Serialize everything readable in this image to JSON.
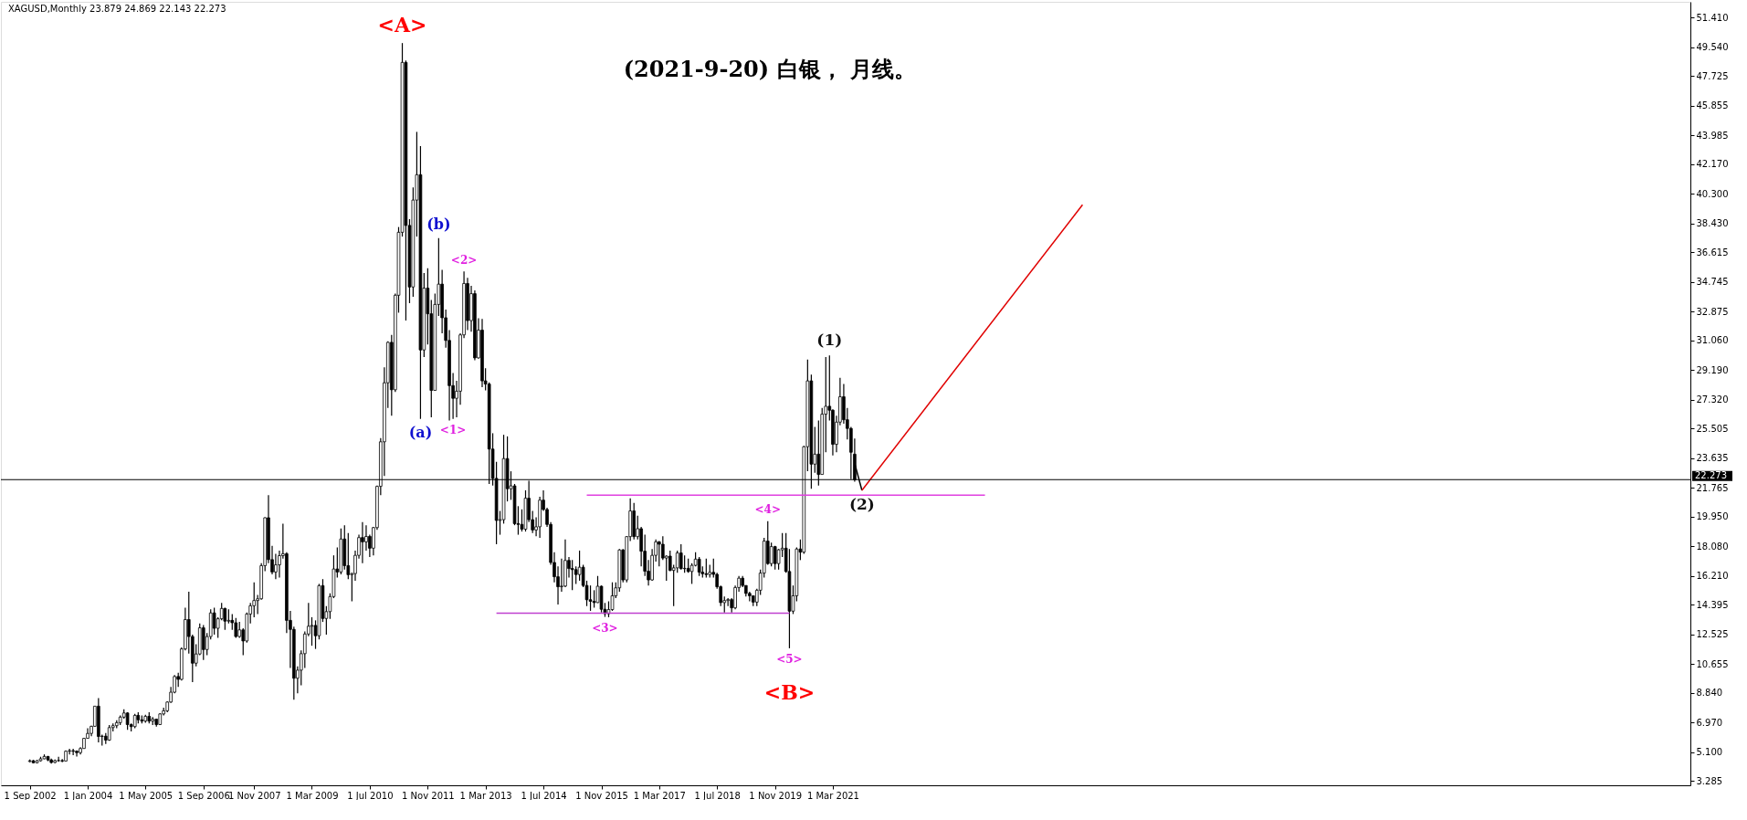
{
  "chart_data": {
    "type": "candlestick",
    "title": "(2021-9-20)  白银，  月线。",
    "subtitle": "XAGUSD,Monthly  23.879 24.869 22.143 22.273",
    "x": [
      "2002-09",
      "2002-10",
      "2002-11",
      "2002-12",
      "2003-01",
      "2003-02",
      "2003-03",
      "2003-04",
      "2003-05",
      "2003-06",
      "2003-07",
      "2003-08",
      "2003-09",
      "2003-10",
      "2003-11",
      "2003-12",
      "2004-01",
      "2004-02",
      "2004-03",
      "2004-04",
      "2004-05",
      "2004-06",
      "2004-07",
      "2004-08",
      "2004-09",
      "2004-10",
      "2004-11",
      "2004-12",
      "2005-01",
      "2005-02",
      "2005-03",
      "2005-04",
      "2005-05",
      "2005-06",
      "2005-07",
      "2005-08",
      "2005-09",
      "2005-10",
      "2005-11",
      "2005-12",
      "2006-01",
      "2006-02",
      "2006-03",
      "2006-04",
      "2006-05",
      "2006-06",
      "2006-07",
      "2006-08",
      "2006-09",
      "2006-10",
      "2006-11",
      "2006-12",
      "2007-01",
      "2007-02",
      "2007-03",
      "2007-04",
      "2007-05",
      "2007-06",
      "2007-07",
      "2007-08",
      "2007-09",
      "2007-10",
      "2007-11",
      "2007-12",
      "2008-01",
      "2008-02",
      "2008-03",
      "2008-04",
      "2008-05",
      "2008-06",
      "2008-07",
      "2008-08",
      "2008-09",
      "2008-10",
      "2008-11",
      "2008-12",
      "2009-01",
      "2009-02",
      "2009-03",
      "2009-04",
      "2009-05",
      "2009-06",
      "2009-07",
      "2009-08",
      "2009-09",
      "2009-10",
      "2009-11",
      "2009-12",
      "2010-01",
      "2010-02",
      "2010-03",
      "2010-04",
      "2010-05",
      "2010-06",
      "2010-07",
      "2010-08",
      "2010-09",
      "2010-10",
      "2010-11",
      "2010-12",
      "2011-01",
      "2011-02",
      "2011-03",
      "2011-04",
      "2011-05",
      "2011-06",
      "2011-07",
      "2011-08",
      "2011-09",
      "2011-10",
      "2011-11",
      "2011-12",
      "2012-01",
      "2012-02",
      "2012-03",
      "2012-04",
      "2012-05",
      "2012-06",
      "2012-07",
      "2012-08",
      "2012-09",
      "2012-10",
      "2012-11",
      "2012-12",
      "2013-01",
      "2013-02",
      "2013-03",
      "2013-04",
      "2013-05",
      "2013-06",
      "2013-07",
      "2013-08",
      "2013-09",
      "2013-10",
      "2013-11",
      "2013-12",
      "2014-01",
      "2014-02",
      "2014-03",
      "2014-04",
      "2014-05",
      "2014-06",
      "2014-07",
      "2014-08",
      "2014-09",
      "2014-10",
      "2014-11",
      "2014-12",
      "2015-01",
      "2015-02",
      "2015-03",
      "2015-04",
      "2015-05",
      "2015-06",
      "2015-07",
      "2015-08",
      "2015-09",
      "2015-10",
      "2015-11",
      "2015-12",
      "2016-01",
      "2016-02",
      "2016-03",
      "2016-04",
      "2016-05",
      "2016-06",
      "2016-07",
      "2016-08",
      "2016-09",
      "2016-10",
      "2016-11",
      "2016-12",
      "2017-01",
      "2017-02",
      "2017-03",
      "2017-04",
      "2017-05",
      "2017-06",
      "2017-07",
      "2017-08",
      "2017-09",
      "2017-10",
      "2017-11",
      "2017-12",
      "2018-01",
      "2018-02",
      "2018-03",
      "2018-04",
      "2018-05",
      "2018-06",
      "2018-07",
      "2018-08",
      "2018-09",
      "2018-10",
      "2018-11",
      "2018-12",
      "2019-01",
      "2019-02",
      "2019-03",
      "2019-04",
      "2019-05",
      "2019-06",
      "2019-07",
      "2019-08",
      "2019-09",
      "2019-10",
      "2019-11",
      "2019-12",
      "2020-01",
      "2020-02",
      "2020-03",
      "2020-04",
      "2020-05",
      "2020-06",
      "2020-07",
      "2020-08",
      "2020-09",
      "2020-10",
      "2020-11",
      "2020-12",
      "2021-01",
      "2021-02",
      "2021-03",
      "2021-04",
      "2021-05",
      "2021-06",
      "2021-07",
      "2021-08",
      "2021-09"
    ],
    "ohlc": [
      [
        4.5,
        4.62,
        4.45,
        4.55
      ],
      [
        4.55,
        4.6,
        4.38,
        4.42
      ],
      [
        4.42,
        4.6,
        4.38,
        4.55
      ],
      [
        4.55,
        4.8,
        4.5,
        4.67
      ],
      [
        4.67,
        4.95,
        4.65,
        4.82
      ],
      [
        4.82,
        4.85,
        4.52,
        4.6
      ],
      [
        4.6,
        4.68,
        4.37,
        4.44
      ],
      [
        4.44,
        4.62,
        4.4,
        4.56
      ],
      [
        4.56,
        4.8,
        4.48,
        4.56
      ],
      [
        4.56,
        4.65,
        4.45,
        4.53
      ],
      [
        4.53,
        5.2,
        4.52,
        5.15
      ],
      [
        5.15,
        5.3,
        4.95,
        5.18
      ],
      [
        5.18,
        5.3,
        4.9,
        5.15
      ],
      [
        5.15,
        5.2,
        4.82,
        5.06
      ],
      [
        5.06,
        5.4,
        4.95,
        5.32
      ],
      [
        5.32,
        6.0,
        5.3,
        5.96
      ],
      [
        5.96,
        6.6,
        5.95,
        6.27
      ],
      [
        6.27,
        6.75,
        6.1,
        6.72
      ],
      [
        6.72,
        8.0,
        6.7,
        7.99
      ],
      [
        7.99,
        8.5,
        5.7,
        6.08
      ],
      [
        6.08,
        6.2,
        5.5,
        6.1
      ],
      [
        6.1,
        6.3,
        5.6,
        5.85
      ],
      [
        5.85,
        6.8,
        5.8,
        6.64
      ],
      [
        6.64,
        6.9,
        6.4,
        6.76
      ],
      [
        6.76,
        7.1,
        6.6,
        6.95
      ],
      [
        6.95,
        7.4,
        6.8,
        7.3
      ],
      [
        7.3,
        7.8,
        7.2,
        7.56
      ],
      [
        7.56,
        7.6,
        6.5,
        6.83
      ],
      [
        6.83,
        6.9,
        6.4,
        6.7
      ],
      [
        6.7,
        7.5,
        6.6,
        7.41
      ],
      [
        7.41,
        7.6,
        6.9,
        7.13
      ],
      [
        7.13,
        7.4,
        6.9,
        7.05
      ],
      [
        7.05,
        7.45,
        6.95,
        7.35
      ],
      [
        7.35,
        7.6,
        6.9,
        7.05
      ],
      [
        7.05,
        7.3,
        6.8,
        7.17
      ],
      [
        7.17,
        7.2,
        6.7,
        6.83
      ],
      [
        6.83,
        7.55,
        6.8,
        7.5
      ],
      [
        7.5,
        7.9,
        7.4,
        7.7
      ],
      [
        7.7,
        8.3,
        7.6,
        8.25
      ],
      [
        8.25,
        9.2,
        8.2,
        8.87
      ],
      [
        8.87,
        9.95,
        8.8,
        9.86
      ],
      [
        9.86,
        10.1,
        9.2,
        9.68
      ],
      [
        9.68,
        11.7,
        9.6,
        11.6
      ],
      [
        11.6,
        14.2,
        11.5,
        13.45
      ],
      [
        13.45,
        15.2,
        11.3,
        12.38
      ],
      [
        12.38,
        12.5,
        9.5,
        10.7
      ],
      [
        10.7,
        11.9,
        10.5,
        11.28
      ],
      [
        11.28,
        13.2,
        11.2,
        12.93
      ],
      [
        12.93,
        13.1,
        10.9,
        11.56
      ],
      [
        11.56,
        12.6,
        11.2,
        12.38
      ],
      [
        12.38,
        14.1,
        12.2,
        13.87
      ],
      [
        13.87,
        14.2,
        12.5,
        12.9
      ],
      [
        12.9,
        13.6,
        12.3,
        13.5
      ],
      [
        13.5,
        14.5,
        13.4,
        14.15
      ],
      [
        14.15,
        14.2,
        12.8,
        13.35
      ],
      [
        13.35,
        14.1,
        13.2,
        13.4
      ],
      [
        13.4,
        13.8,
        12.8,
        13.25
      ],
      [
        13.25,
        13.55,
        12.3,
        12.38
      ],
      [
        12.38,
        13.3,
        12.3,
        12.8
      ],
      [
        12.8,
        12.9,
        11.2,
        12.1
      ],
      [
        12.1,
        13.9,
        12.0,
        13.8
      ],
      [
        13.8,
        14.5,
        13.2,
        14.32
      ],
      [
        14.32,
        15.8,
        13.6,
        14.65
      ],
      [
        14.65,
        15.0,
        13.8,
        14.76
      ],
      [
        14.76,
        17.0,
        14.7,
        16.85
      ],
      [
        16.85,
        19.9,
        16.5,
        19.87
      ],
      [
        19.87,
        21.3,
        17.0,
        17.23
      ],
      [
        17.23,
        18.1,
        16.3,
        16.45
      ],
      [
        16.45,
        17.6,
        16.0,
        16.9
      ],
      [
        16.9,
        17.8,
        16.1,
        17.48
      ],
      [
        17.48,
        19.5,
        17.3,
        17.6
      ],
      [
        17.6,
        17.7,
        12.6,
        13.4
      ],
      [
        13.4,
        14.0,
        10.4,
        12.83
      ],
      [
        12.83,
        13.0,
        8.4,
        9.75
      ],
      [
        9.75,
        10.5,
        8.8,
        10.26
      ],
      [
        10.26,
        11.5,
        9.3,
        11.3
      ],
      [
        11.3,
        12.7,
        10.4,
        12.54
      ],
      [
        12.54,
        14.5,
        12.4,
        13.03
      ],
      [
        13.03,
        13.6,
        11.8,
        13.08
      ],
      [
        13.08,
        13.4,
        11.6,
        12.43
      ],
      [
        12.43,
        15.7,
        12.2,
        15.59
      ],
      [
        15.59,
        16.0,
        13.3,
        13.52
      ],
      [
        13.52,
        14.3,
        12.5,
        13.95
      ],
      [
        13.95,
        15.1,
        13.5,
        14.9
      ],
      [
        14.9,
        17.5,
        14.8,
        16.64
      ],
      [
        16.64,
        18.0,
        16.1,
        16.45
      ],
      [
        16.45,
        19.2,
        16.3,
        18.53
      ],
      [
        18.53,
        19.4,
        16.6,
        16.85
      ],
      [
        16.85,
        18.9,
        16.0,
        16.28
      ],
      [
        16.28,
        16.4,
        14.6,
        16.35
      ],
      [
        16.35,
        17.8,
        15.9,
        17.5
      ],
      [
        17.5,
        18.8,
        17.3,
        18.62
      ],
      [
        18.62,
        19.6,
        17.0,
        18.35
      ],
      [
        18.35,
        19.4,
        17.8,
        18.69
      ],
      [
        18.69,
        18.8,
        17.4,
        17.95
      ],
      [
        17.95,
        19.3,
        17.5,
        19.25
      ],
      [
        19.25,
        21.9,
        19.1,
        21.85
      ],
      [
        21.85,
        24.9,
        21.3,
        24.66
      ],
      [
        24.66,
        29.35,
        22.5,
        28.38
      ],
      [
        28.38,
        31.0,
        26.8,
        30.93
      ],
      [
        30.93,
        31.4,
        26.3,
        27.94
      ],
      [
        27.94,
        34.0,
        27.8,
        33.9
      ],
      [
        33.9,
        38.2,
        32.8,
        37.87
      ],
      [
        37.87,
        49.8,
        37.6,
        48.58
      ],
      [
        48.58,
        48.7,
        32.3,
        38.3
      ],
      [
        38.3,
        38.7,
        33.4,
        34.42
      ],
      [
        34.42,
        40.7,
        33.8,
        39.9
      ],
      [
        39.9,
        44.2,
        37.6,
        41.5
      ],
      [
        41.5,
        43.3,
        26.1,
        30.45
      ],
      [
        30.45,
        35.3,
        30.0,
        34.35
      ],
      [
        34.35,
        35.6,
        30.8,
        32.73
      ],
      [
        32.73,
        33.6,
        26.2,
        27.9
      ],
      [
        27.9,
        34.0,
        27.9,
        33.32
      ],
      [
        33.32,
        37.5,
        32.6,
        34.6
      ],
      [
        34.6,
        35.5,
        31.5,
        32.48
      ],
      [
        32.48,
        33.0,
        30.6,
        31.05
      ],
      [
        31.05,
        31.7,
        26.0,
        28.2
      ],
      [
        28.2,
        29.0,
        26.1,
        27.4
      ],
      [
        27.4,
        28.5,
        26.2,
        27.85
      ],
      [
        27.85,
        31.5,
        27.0,
        31.4
      ],
      [
        31.4,
        35.4,
        31.2,
        34.64
      ],
      [
        34.64,
        35.0,
        31.7,
        32.3
      ],
      [
        32.3,
        34.5,
        31.6,
        34.0
      ],
      [
        34.0,
        34.2,
        29.8,
        29.95
      ],
      [
        29.95,
        32.45,
        29.9,
        31.7
      ],
      [
        31.7,
        32.4,
        28.1,
        28.5
      ],
      [
        28.5,
        29.3,
        27.9,
        28.3
      ],
      [
        28.3,
        28.4,
        22.0,
        24.2
      ],
      [
        24.2,
        25.2,
        21.9,
        22.35
      ],
      [
        22.35,
        23.4,
        18.2,
        19.7
      ],
      [
        19.7,
        20.3,
        18.8,
        19.75
      ],
      [
        19.75,
        25.1,
        19.5,
        23.6
      ],
      [
        23.6,
        25.0,
        20.9,
        21.7
      ],
      [
        21.7,
        22.8,
        21.0,
        21.88
      ],
      [
        21.88,
        22.0,
        19.4,
        19.5
      ],
      [
        19.5,
        20.6,
        18.8,
        19.45
      ],
      [
        19.45,
        20.4,
        19.0,
        19.15
      ],
      [
        19.15,
        21.6,
        19.0,
        21.1
      ],
      [
        21.1,
        22.2,
        19.6,
        19.75
      ],
      [
        19.75,
        20.3,
        18.9,
        19.1
      ],
      [
        19.1,
        19.9,
        18.7,
        19.3
      ],
      [
        19.3,
        21.2,
        18.6,
        20.98
      ],
      [
        20.98,
        21.6,
        20.3,
        20.39
      ],
      [
        20.39,
        20.5,
        19.3,
        19.45
      ],
      [
        19.45,
        19.6,
        16.9,
        17.05
      ],
      [
        17.05,
        17.7,
        15.8,
        16.15
      ],
      [
        16.15,
        16.8,
        14.4,
        15.52
      ],
      [
        15.52,
        17.3,
        15.2,
        15.56
      ],
      [
        15.56,
        18.5,
        15.5,
        17.18
      ],
      [
        17.18,
        17.4,
        16.1,
        16.67
      ],
      [
        16.67,
        17.2,
        15.3,
        16.6
      ],
      [
        16.6,
        16.8,
        15.7,
        16.29
      ],
      [
        16.29,
        17.8,
        15.9,
        16.75
      ],
      [
        16.75,
        16.9,
        15.5,
        15.6
      ],
      [
        15.6,
        15.9,
        14.3,
        14.7
      ],
      [
        14.7,
        15.6,
        14.0,
        14.6
      ],
      [
        14.6,
        15.3,
        14.2,
        14.52
      ],
      [
        14.52,
        16.2,
        14.5,
        15.55
      ],
      [
        15.55,
        15.6,
        13.9,
        14.1
      ],
      [
        14.1,
        14.5,
        13.62,
        13.82
      ],
      [
        13.82,
        14.6,
        13.6,
        14.08
      ],
      [
        14.08,
        15.8,
        14.0,
        14.95
      ],
      [
        14.95,
        15.8,
        14.8,
        15.45
      ],
      [
        15.45,
        17.9,
        15.2,
        17.84
      ],
      [
        17.84,
        17.9,
        15.8,
        15.95
      ],
      [
        15.95,
        18.7,
        15.8,
        18.68
      ],
      [
        18.68,
        21.1,
        18.4,
        20.3
      ],
      [
        20.3,
        20.8,
        18.5,
        18.68
      ],
      [
        18.68,
        20.0,
        18.5,
        19.18
      ],
      [
        19.18,
        19.3,
        16.8,
        17.76
      ],
      [
        17.76,
        18.8,
        16.2,
        16.5
      ],
      [
        16.5,
        17.2,
        15.6,
        15.95
      ],
      [
        15.95,
        17.9,
        15.9,
        17.5
      ],
      [
        17.5,
        18.5,
        17.1,
        18.35
      ],
      [
        18.35,
        18.4,
        16.8,
        18.2
      ],
      [
        18.2,
        18.7,
        17.2,
        17.33
      ],
      [
        17.33,
        17.5,
        15.9,
        17.45
      ],
      [
        17.45,
        17.8,
        16.5,
        16.55
      ],
      [
        16.55,
        16.9,
        14.3,
        16.71
      ],
      [
        16.71,
        17.8,
        16.4,
        17.65
      ],
      [
        17.65,
        18.2,
        16.6,
        16.66
      ],
      [
        16.66,
        17.5,
        16.4,
        16.68
      ],
      [
        16.68,
        17.3,
        16.4,
        16.48
      ],
      [
        16.48,
        17.0,
        15.7,
        16.87
      ],
      [
        16.87,
        17.7,
        16.8,
        17.26
      ],
      [
        17.26,
        17.4,
        16.2,
        16.44
      ],
      [
        16.44,
        16.8,
        16.1,
        16.34
      ],
      [
        16.34,
        17.3,
        16.1,
        16.29
      ],
      [
        16.29,
        16.9,
        16.1,
        16.43
      ],
      [
        16.43,
        17.3,
        16.1,
        16.3
      ],
      [
        16.3,
        16.4,
        15.4,
        15.52
      ],
      [
        15.52,
        15.6,
        14.3,
        14.52
      ],
      [
        14.52,
        14.9,
        13.9,
        14.65
      ],
      [
        14.65,
        14.8,
        14.3,
        14.71
      ],
      [
        14.71,
        14.8,
        13.9,
        14.19
      ],
      [
        14.19,
        15.6,
        14.1,
        15.47
      ],
      [
        15.47,
        16.2,
        15.2,
        16.06
      ],
      [
        16.06,
        16.2,
        15.5,
        15.6
      ],
      [
        15.6,
        15.6,
        14.9,
        15.1
      ],
      [
        15.1,
        15.2,
        14.6,
        14.95
      ],
      [
        14.95,
        14.95,
        14.3,
        14.55
      ],
      [
        14.55,
        15.4,
        14.3,
        15.3
      ],
      [
        15.3,
        16.6,
        15.0,
        16.38
      ],
      [
        16.38,
        18.6,
        16.1,
        18.4
      ],
      [
        18.4,
        19.65,
        16.9,
        16.98
      ],
      [
        16.98,
        18.3,
        16.8,
        18.05
      ],
      [
        18.05,
        18.1,
        16.6,
        16.98
      ],
      [
        16.98,
        17.9,
        16.6,
        17.85
      ],
      [
        17.85,
        18.9,
        17.4,
        17.95
      ],
      [
        17.95,
        18.9,
        16.4,
        16.48
      ],
      [
        16.48,
        17.9,
        11.64,
        13.98
      ],
      [
        13.98,
        15.6,
        13.8,
        14.95
      ],
      [
        14.95,
        18.0,
        14.6,
        17.9
      ],
      [
        17.9,
        18.5,
        17.2,
        17.7
      ],
      [
        17.7,
        24.4,
        17.6,
        24.35
      ],
      [
        24.35,
        29.85,
        22.8,
        28.5
      ],
      [
        28.5,
        28.9,
        21.7,
        23.25
      ],
      [
        23.25,
        25.6,
        22.7,
        23.88
      ],
      [
        23.88,
        26.0,
        21.9,
        22.6
      ],
      [
        22.6,
        26.8,
        22.6,
        26.4
      ],
      [
        26.4,
        30.0,
        24.0,
        26.9
      ],
      [
        26.9,
        30.1,
        26.0,
        26.65
      ],
      [
        26.65,
        26.7,
        23.8,
        24.5
      ],
      [
        24.5,
        26.3,
        24.0,
        25.9
      ],
      [
        25.9,
        28.7,
        25.7,
        27.5
      ],
      [
        27.5,
        28.3,
        25.8,
        26.05
      ],
      [
        26.05,
        26.8,
        24.8,
        25.5
      ],
      [
        25.5,
        25.6,
        22.3,
        24.0
      ],
      [
        23.879,
        24.869,
        22.143,
        22.273
      ]
    ],
    "series": [
      {
        "type": "line",
        "color": "#e040e0",
        "x": [
          "2015-07",
          "2024-09"
        ],
        "values": [
          21.3,
          21.3
        ]
      },
      {
        "type": "line",
        "color": "#c040d0",
        "x": [
          "2013-06",
          "2020-03"
        ],
        "values": [
          13.85,
          13.85
        ]
      },
      {
        "type": "line",
        "color": "#000000",
        "x": [
          "2021-09",
          "2021-11"
        ],
        "values": [
          23.3,
          21.6
        ]
      },
      {
        "type": "line",
        "color": "#e00000",
        "x": [
          "2021-11",
          "2026-12"
        ],
        "values": [
          21.6,
          39.6
        ]
      }
    ],
    "ref_lines": [
      {
        "axis": "y",
        "value": 22.273,
        "label": "22.273",
        "color": "#000000"
      }
    ],
    "annotations": [
      {
        "text": "<A>",
        "x": "2011-04",
        "y": 49.8
      },
      {
        "text": "(b)",
        "x": "2012-02",
        "y": 37.5
      },
      {
        "text": "<2>",
        "x": "2012-09",
        "y": 35.4
      },
      {
        "text": "(a)",
        "x": "2011-09",
        "y": 26.1
      },
      {
        "text": "<1>",
        "x": "2012-06",
        "y": 26.1
      },
      {
        "text": "<3>",
        "x": "2015-12",
        "y": 13.62
      },
      {
        "text": "<4>",
        "x": "2019-09",
        "y": 19.65
      },
      {
        "text": "<5>",
        "x": "2020-03",
        "y": 11.64
      },
      {
        "text": "<B>",
        "x": "2020-03",
        "y": 11.64
      },
      {
        "text": "(1)",
        "x": "2021-02",
        "y": 30.1
      },
      {
        "text": "(2)",
        "x": "2021-11",
        "y": 21.6
      }
    ],
    "xlim": [
      "2002-01",
      "2040-12"
    ],
    "xticks": [
      {
        "value": "2002-09",
        "label": "1 Sep 2002"
      },
      {
        "value": "2004-01",
        "label": "1 Jan 2004"
      },
      {
        "value": "2005-05",
        "label": "1 May 2005"
      },
      {
        "value": "2006-09",
        "label": "1 Sep 2006"
      },
      {
        "value": "2007-11",
        "label": "1 Nov 2007"
      },
      {
        "value": "2009-03",
        "label": "1 Mar 2009"
      },
      {
        "value": "2010-07",
        "label": "1 Jul 2010"
      },
      {
        "value": "2011-11",
        "label": "1 Nov 2011"
      },
      {
        "value": "2013-03",
        "label": "1 Mar 2013"
      },
      {
        "value": "2014-07",
        "label": "1 Jul 2014"
      },
      {
        "value": "2015-11",
        "label": "1 Nov 2015"
      },
      {
        "value": "2017-03",
        "label": "1 Mar 2017"
      },
      {
        "value": "2018-07",
        "label": "1 Jul 2018"
      },
      {
        "value": "2019-11",
        "label": "1 Nov 2019"
      },
      {
        "value": "2021-03",
        "label": "1 Mar 2021"
      }
    ],
    "ylim": [
      3.0,
      52.4
    ],
    "yticks": [
      {
        "value": 3.285,
        "label": "3.285"
      },
      {
        "value": 5.1,
        "label": "5.100"
      },
      {
        "value": 6.97,
        "label": "6.970"
      },
      {
        "value": 8.84,
        "label": "8.840"
      },
      {
        "value": 10.655,
        "label": "10.655"
      },
      {
        "value": 12.525,
        "label": "12.525"
      },
      {
        "value": 14.395,
        "label": "14.395"
      },
      {
        "value": 16.21,
        "label": "16.210"
      },
      {
        "value": 18.08,
        "label": "18.080"
      },
      {
        "value": 19.95,
        "label": "19.950"
      },
      {
        "value": 21.765,
        "label": "21.765"
      },
      {
        "value": 23.635,
        "label": "23.635"
      },
      {
        "value": 25.505,
        "label": "25.505"
      },
      {
        "value": 27.32,
        "label": "27.320"
      },
      {
        "value": 29.19,
        "label": "29.190"
      },
      {
        "value": 31.06,
        "label": "31.060"
      },
      {
        "value": 32.875,
        "label": "32.875"
      },
      {
        "value": 34.745,
        "label": "34.745"
      },
      {
        "value": 36.615,
        "label": "36.615"
      },
      {
        "value": 38.43,
        "label": "38.430"
      },
      {
        "value": 40.3,
        "label": "40.300"
      },
      {
        "value": 42.17,
        "label": "42.170"
      },
      {
        "value": 43.985,
        "label": "43.985"
      },
      {
        "value": 45.855,
        "label": "45.855"
      },
      {
        "value": 47.725,
        "label": "47.725"
      },
      {
        "value": 49.54,
        "label": "49.540"
      },
      {
        "value": 51.41,
        "label": "51.410"
      }
    ],
    "grid": false
  }
}
